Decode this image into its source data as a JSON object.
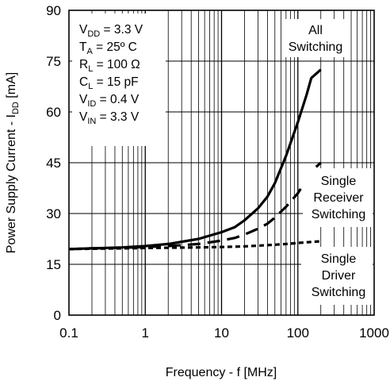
{
  "chart_data": {
    "type": "line",
    "xscale": "log",
    "xlim": [
      0.1,
      1000
    ],
    "ylim": [
      0,
      90
    ],
    "xticks": [
      0.1,
      1,
      10,
      100,
      1000
    ],
    "xtick_labels": [
      "0.1",
      "1",
      "10",
      "100",
      "1000"
    ],
    "yticks": [
      0,
      15,
      30,
      45,
      60,
      75,
      90
    ],
    "ytick_labels": [
      "0",
      "15",
      "30",
      "45",
      "60",
      "75",
      "90"
    ],
    "grid": true,
    "xlabel": "Frequency - f [MHz]",
    "ylabel": {
      "prefix": "Power Supply Current - I",
      "sub": "DD",
      "suffix": " [mA]"
    },
    "conditions": [
      {
        "main": "V",
        "sub": "DD",
        "rest": " = 3.3 V"
      },
      {
        "main": "T",
        "sub": "A",
        "rest": " = 25º C"
      },
      {
        "main": "R",
        "sub": "L",
        "rest": " = 100 Ω"
      },
      {
        "main": "C",
        "sub": "L",
        "rest": " = 15 pF"
      },
      {
        "main": "V",
        "sub": "ID",
        "rest": " = 0.4 V"
      },
      {
        "main": "V",
        "sub": "IN",
        "rest": " = 3.3 V"
      }
    ],
    "series": [
      {
        "name": "All Switching",
        "label_lines": [
          "All",
          "Switching"
        ],
        "style": "solid",
        "x": [
          0.1,
          0.2,
          0.5,
          1,
          2,
          5,
          10,
          15,
          20,
          30,
          40,
          50,
          70,
          100,
          130,
          150,
          200
        ],
        "y": [
          19.5,
          19.7,
          20,
          20.4,
          21,
          22.5,
          24.5,
          26,
          28,
          31.5,
          35,
          39,
          47,
          57,
          65,
          70,
          72.5
        ]
      },
      {
        "name": "Single Receiver Switching",
        "label_lines": [
          "Single",
          "Receiver",
          "Switching"
        ],
        "style": "longdash",
        "x": [
          0.1,
          0.2,
          0.5,
          1,
          2,
          5,
          10,
          15,
          20,
          30,
          40,
          50,
          70,
          100,
          130,
          150,
          200
        ],
        "y": [
          19.5,
          19.7,
          19.9,
          20.1,
          20.4,
          21,
          22,
          22.8,
          23.8,
          25.5,
          27,
          28.8,
          32,
          36,
          40,
          42.5,
          45
        ]
      },
      {
        "name": "Single Driver Switching",
        "label_lines": [
          "Single",
          "Driver",
          "Switching"
        ],
        "style": "shortdash",
        "x": [
          0.1,
          0.2,
          0.5,
          1,
          2,
          5,
          10,
          20,
          30,
          50,
          70,
          100,
          150,
          200
        ],
        "y": [
          19.5,
          19.6,
          19.7,
          19.8,
          19.9,
          20,
          20.1,
          20.3,
          20.5,
          20.8,
          21,
          21.3,
          21.6,
          21.8
        ]
      }
    ]
  }
}
